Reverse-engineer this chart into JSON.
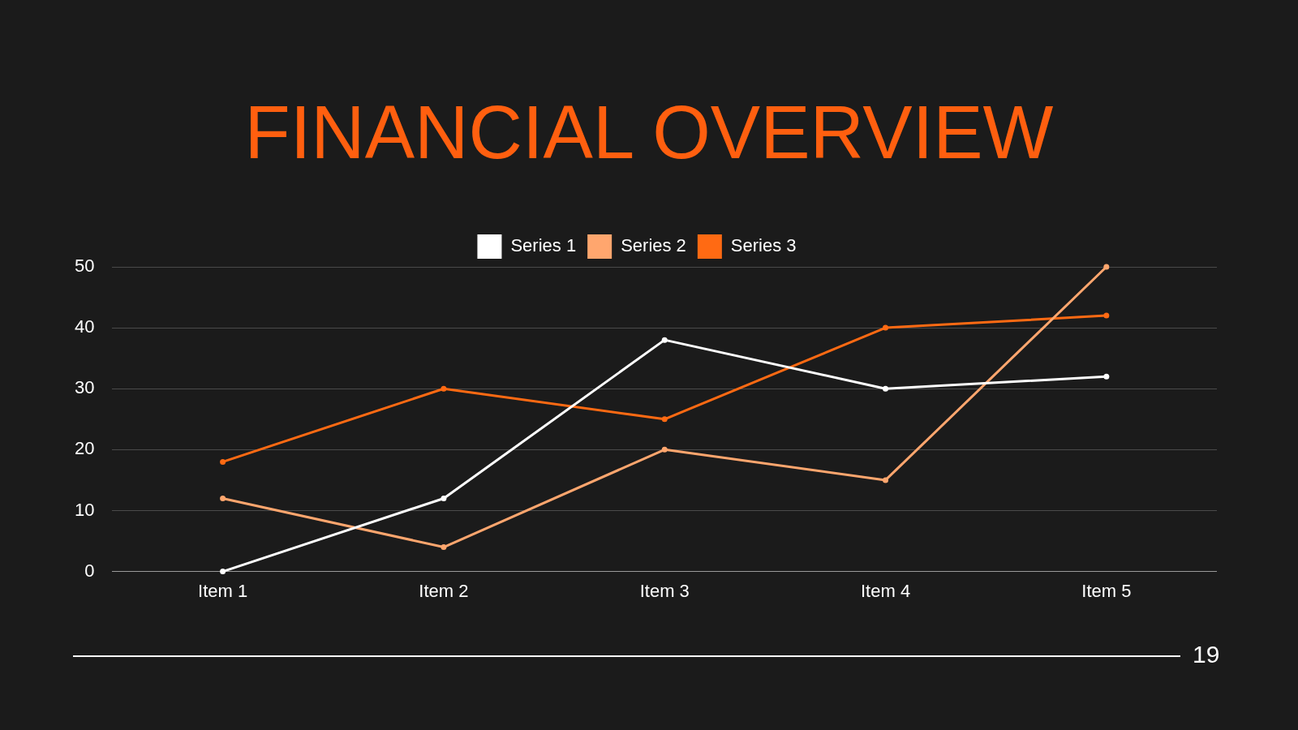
{
  "chart_data": {
    "type": "line",
    "title": "FINANCIAL OVERVIEW",
    "categories": [
      "Item 1",
      "Item 2",
      "Item 3",
      "Item 4",
      "Item 5"
    ],
    "series": [
      {
        "name": "Series 1",
        "color": "#ffffff",
        "values": [
          0,
          12,
          38,
          30,
          32
        ]
      },
      {
        "name": "Series 2",
        "color": "#ffa66e",
        "values": [
          12,
          4,
          20,
          15,
          50
        ]
      },
      {
        "name": "Series 3",
        "color": "#ff6a13",
        "values": [
          18,
          30,
          25,
          40,
          42
        ]
      }
    ],
    "ylim": [
      0,
      50
    ],
    "yticks": [
      0,
      10,
      20,
      30,
      40,
      50
    ],
    "grid": "y",
    "legend": "top",
    "marker": "circle",
    "line_style": "solid",
    "annotations": [
      "19"
    ]
  }
}
